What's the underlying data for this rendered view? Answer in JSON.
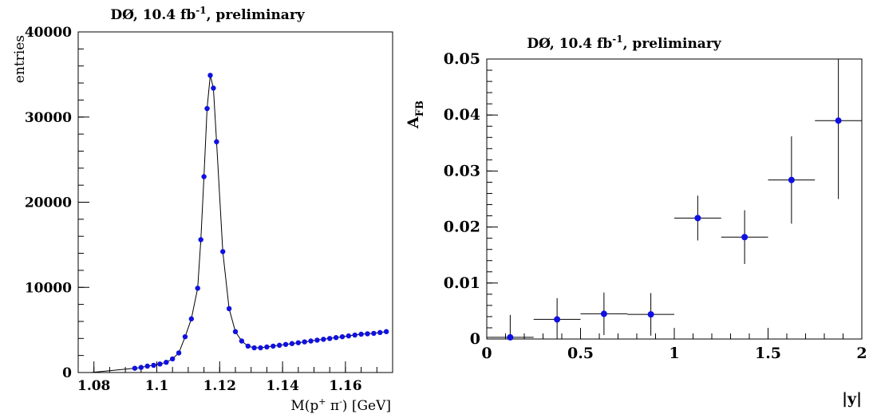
{
  "chart_data": [
    {
      "type": "scatter",
      "title": "DØ, 10.4 fb",
      "title_sup": "-1",
      "title_tail": ", preliminary",
      "xlabel": "M(p",
      "xlabel_sup1": "+",
      "xlabel_mid": " π",
      "xlabel_sup2": "-",
      "xlabel_tail": ") [GeV]",
      "ylabel": "entries",
      "xlim": [
        1.075,
        1.175
      ],
      "ylim": [
        0,
        40000
      ],
      "xticks": [
        1.08,
        1.1,
        1.12,
        1.14,
        1.16
      ],
      "xtick_labels": [
        "1.08",
        "1.1",
        "1.12",
        "1.14",
        "1.16"
      ],
      "yticks": [
        0,
        10000,
        20000,
        30000,
        40000
      ],
      "ytick_labels": [
        "0",
        "10000",
        "20000",
        "30000",
        "40000"
      ],
      "marker_color": "#1010e0",
      "line_color": "#000000",
      "series": [
        {
          "x": [
            1.093,
            1.095,
            1.097,
            1.099,
            1.101,
            1.103,
            1.105,
            1.107,
            1.109,
            1.111,
            1.113,
            1.114,
            1.115,
            1.116,
            1.117,
            1.118,
            1.119,
            1.121,
            1.123,
            1.125,
            1.127,
            1.129,
            1.131,
            1.133,
            1.135,
            1.137,
            1.139,
            1.141,
            1.143,
            1.145,
            1.147,
            1.149,
            1.151,
            1.153,
            1.155,
            1.157,
            1.159,
            1.161,
            1.163,
            1.165,
            1.167,
            1.169,
            1.171,
            1.173
          ],
          "y": [
            500,
            600,
            750,
            850,
            1000,
            1200,
            1600,
            2300,
            4200,
            6300,
            9900,
            15600,
            23000,
            31000,
            34900,
            33400,
            27100,
            14200,
            7500,
            4800,
            3700,
            3100,
            2900,
            2900,
            3000,
            3100,
            3200,
            3300,
            3400,
            3500,
            3600,
            3700,
            3800,
            3900,
            4000,
            4100,
            4200,
            4300,
            4400,
            4500,
            4550,
            4600,
            4700,
            4800
          ]
        }
      ]
    },
    {
      "type": "scatter",
      "title": "DØ, 10.4 fb",
      "title_sup": "-1",
      "title_tail": ", preliminary",
      "xlabel": "|y|",
      "ylabel": "A",
      "ylabel_sub": "FB",
      "xlim": [
        0,
        2
      ],
      "ylim": [
        0,
        0.05
      ],
      "xticks": [
        0,
        0.5,
        1,
        1.5,
        2
      ],
      "xtick_labels": [
        "0",
        "0.5",
        "1",
        "1.5",
        "2"
      ],
      "yticks": [
        0,
        0.01,
        0.02,
        0.03,
        0.04,
        0.05
      ],
      "ytick_labels": [
        "0",
        "0.01",
        "0.02",
        "0.03",
        "0.04",
        "0.05"
      ],
      "marker_color": "#1010e0",
      "series": [
        {
          "x": [
            0.125,
            0.375,
            0.625,
            0.875,
            1.125,
            1.375,
            1.625,
            1.875
          ],
          "y": [
            0.0003,
            0.0035,
            0.0045,
            0.0044,
            0.0216,
            0.0182,
            0.0284,
            0.039
          ],
          "xerr": [
            0.125,
            0.125,
            0.125,
            0.125,
            0.125,
            0.125,
            0.125,
            0.125
          ],
          "yerr": [
            0.004,
            0.0038,
            0.0038,
            0.0038,
            0.004,
            0.0048,
            0.0078,
            0.014
          ]
        }
      ]
    }
  ]
}
